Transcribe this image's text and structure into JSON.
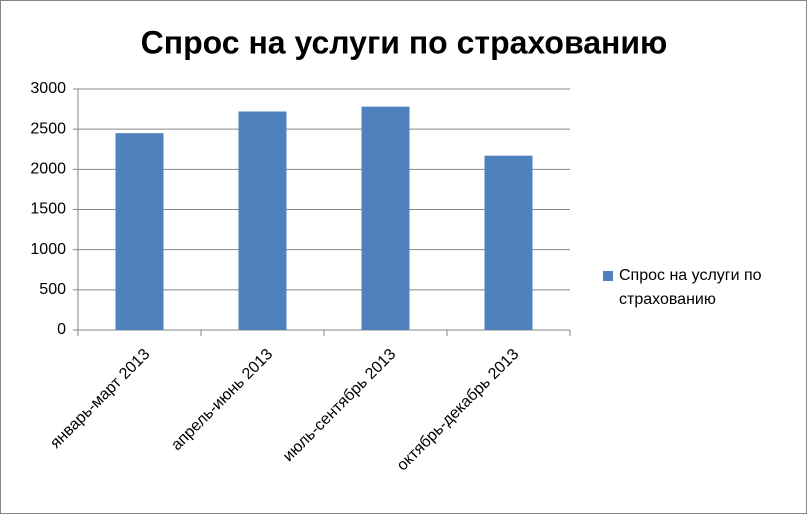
{
  "chart_data": {
    "type": "bar",
    "title": "Спрос на услуги по страхованию",
    "categories": [
      "январь-март 2013",
      "апрель-июнь 2013",
      "июль-сентябрь 2013",
      "октябрь-декабрь 2013"
    ],
    "series": [
      {
        "name": "Спрос на услуги по страхованию",
        "color": "#4f81bd",
        "values": [
          2450,
          2720,
          2780,
          2170
        ]
      }
    ],
    "ylim": [
      0,
      3000
    ],
    "yticks": [
      0,
      500,
      1000,
      1500,
      2000,
      2500,
      3000
    ],
    "grid": true,
    "legend": "right"
  }
}
